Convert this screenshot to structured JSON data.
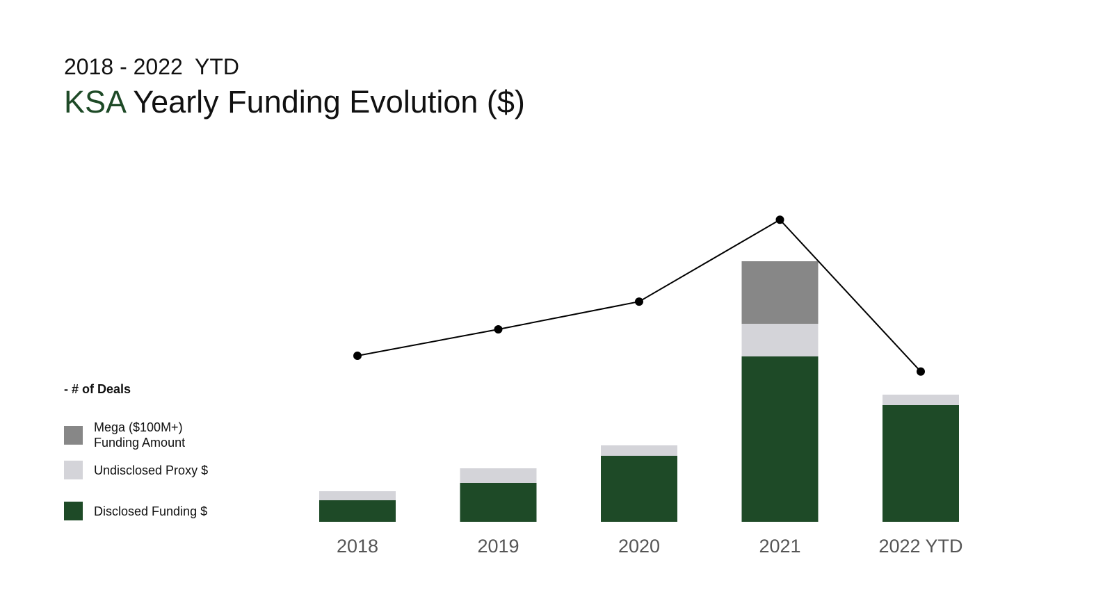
{
  "header": {
    "subtitle": "2018 - 2022  YTD",
    "title_accent": "KSA",
    "title_rest": " Yearly Funding Evolution ($)"
  },
  "legend": {
    "deals_label": "- # of Deals",
    "mega_line1": "Mega ($100M+)",
    "mega_line2": "Funding Amount",
    "undisclosed": "Undisclosed Proxy $",
    "disclosed": "Disclosed Funding $"
  },
  "colors": {
    "disclosed": "#1e4a27",
    "undisclosed": "#d4d4d9",
    "mega": "#878787",
    "line": "#000000",
    "accent": "#1e4a27"
  },
  "chart_data": {
    "type": "bar",
    "stacked": true,
    "categories": [
      "2018",
      "2019",
      "2020",
      "2021",
      "2022 YTD"
    ],
    "series": [
      {
        "name": "Disclosed Funding $",
        "values": [
          31,
          56,
          95,
          238,
          168
        ]
      },
      {
        "name": "Undisclosed Proxy $",
        "values": [
          13,
          21,
          15,
          47,
          15
        ]
      },
      {
        "name": "Mega ($100M+) Funding Amount",
        "values": [
          0,
          0,
          0,
          90,
          0
        ]
      }
    ],
    "line_series": {
      "name": "# of Deals",
      "values": [
        100,
        120,
        141,
        203,
        88
      ]
    },
    "y_visible": false,
    "grid": false,
    "legend_position": "left"
  }
}
